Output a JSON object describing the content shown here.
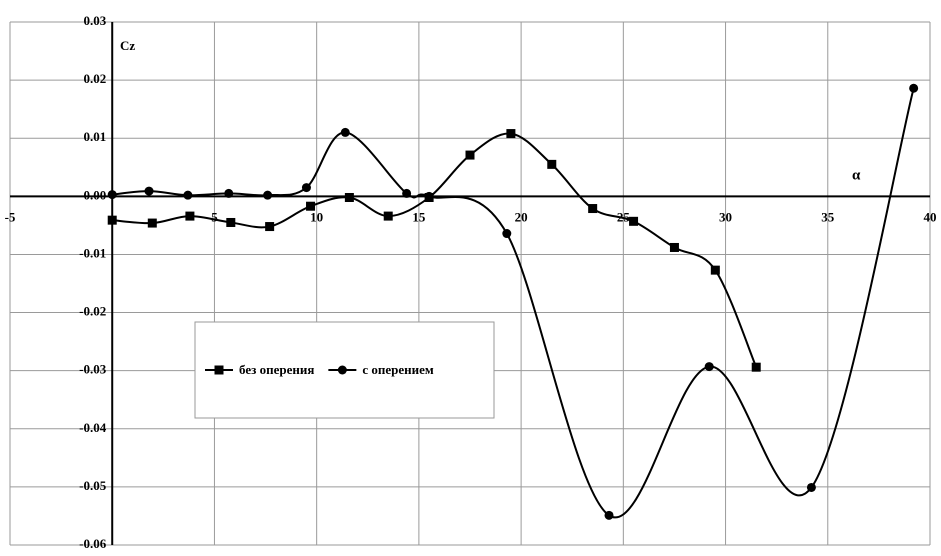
{
  "chart_data": {
    "type": "line",
    "x_label": "α",
    "y_label": "Cz",
    "xlim": [
      -5,
      40
    ],
    "ylim": [
      -0.06,
      0.03
    ],
    "xticks": [
      -5,
      5,
      10,
      15,
      20,
      25,
      30,
      35,
      40
    ],
    "yticks": [
      -0.06,
      -0.05,
      -0.04,
      -0.03,
      -0.02,
      -0.01,
      {
        "value": 0,
        "label": "0.00"
      },
      0.01,
      0.02,
      0.03
    ],
    "grid": true,
    "smooth": true,
    "series": [
      {
        "name": "без оперения",
        "color": "#000000",
        "marker": "square",
        "x": [
          0,
          1.96,
          3.8,
          5.8,
          7.7,
          9.7,
          11.6,
          13.5,
          15.5,
          17.5,
          19.5,
          21.5,
          23.5,
          25.5,
          27.5,
          29.5,
          31.5
        ],
        "values": [
          -0.0041,
          -0.0046,
          -0.0034,
          -0.0045,
          -0.0052,
          -0.0017,
          -0.0002,
          -0.0034,
          -0.0002,
          0.0071,
          0.0108,
          0.0055,
          -0.0021,
          -0.0043,
          -0.0088,
          -0.0127,
          -0.0294
        ]
      },
      {
        "name": "с оперением",
        "color": "#000000",
        "marker": "circle",
        "x": [
          0,
          1.8,
          3.7,
          5.7,
          7.6,
          9.5,
          11.4,
          14.4,
          15.5,
          19.3,
          24.3,
          29.2,
          34.2,
          39.2
        ],
        "values": [
          0.0003,
          0.0009,
          0.0002,
          0.0005,
          0.0002,
          0.0015,
          0.011,
          0.0005,
          0,
          -0.0064,
          -0.0549,
          -0.0293,
          -0.0501,
          0.0186
        ]
      }
    ]
  }
}
